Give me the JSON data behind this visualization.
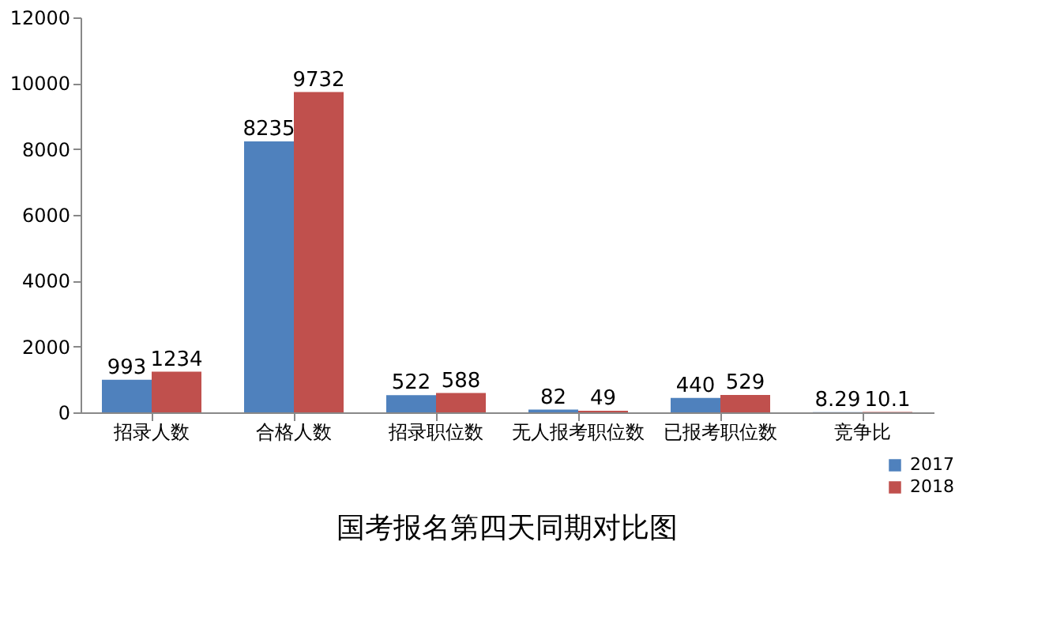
{
  "chart_data": {
    "type": "bar",
    "title": "国考报名第四天同期对比图",
    "categories": [
      "招录人数",
      "合格人数",
      "招录职位数",
      "无人报考职位数",
      "已报考职位数",
      "竞争比"
    ],
    "series": [
      {
        "name": "2017",
        "color": "#4f81bd",
        "values": [
          993,
          8235,
          522,
          82,
          440,
          8.29
        ]
      },
      {
        "name": "2018",
        "color": "#c0504d",
        "values": [
          1234,
          9732,
          588,
          49,
          529,
          10.1
        ]
      }
    ],
    "ylim": [
      0,
      12000
    ],
    "yticks": [
      0,
      2000,
      4000,
      6000,
      8000,
      10000,
      12000
    ],
    "grid": false,
    "data_labels": true,
    "legend": "bottom right"
  }
}
